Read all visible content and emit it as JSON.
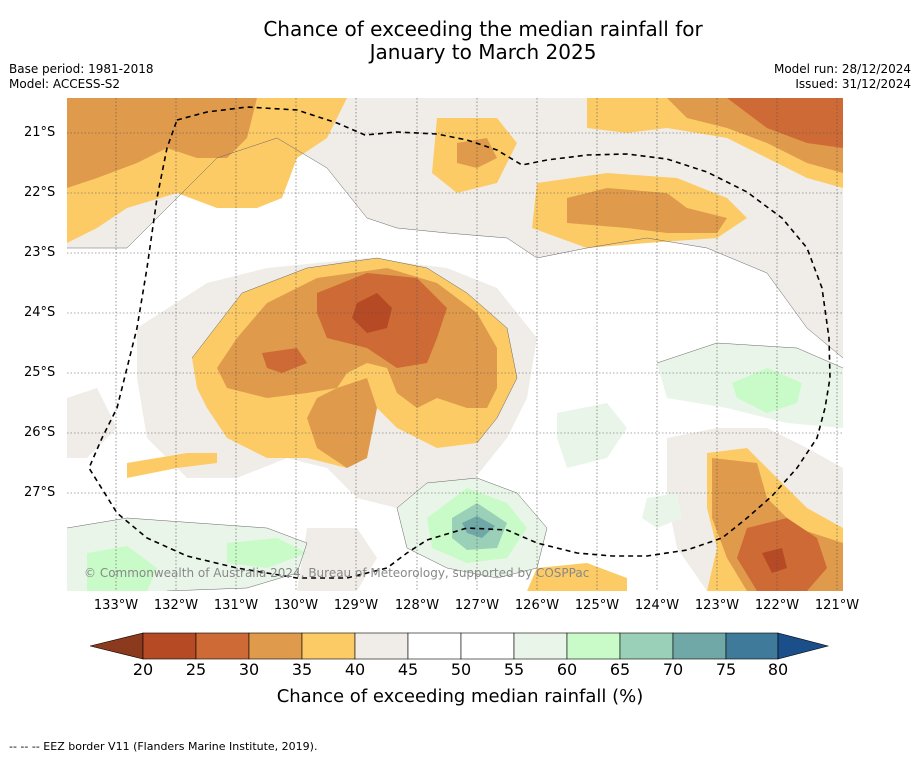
{
  "title_line1": "Chance of exceeding the median rainfall for",
  "title_line2": "January to March 2025",
  "base_period": "Base period: 1981-2018",
  "model": "Model: ACCESS-S2",
  "model_run": "Model run: 28/12/2024",
  "issued": "Issued: 31/12/2024",
  "copyright": "© Commonwealth of Australia 2024, Bureau of Meteorology, supported by COSPPac",
  "footer": "--  --  -- EEZ border V11 (Flanders Marine Institute, 2019).",
  "lat_labels": [
    "21°S",
    "22°S",
    "23°S",
    "24°S",
    "25°S",
    "26°S",
    "27°S"
  ],
  "lon_labels": [
    "133°W",
    "132°W",
    "131°W",
    "130°W",
    "129°W",
    "128°W",
    "127°W",
    "126°W",
    "125°W",
    "124°W",
    "123°W",
    "122°W",
    "121°W"
  ],
  "colorbar": {
    "title": "Chance of exceeding median rainfall (%)",
    "ticks": [
      "20",
      "25",
      "30",
      "35",
      "40",
      "45",
      "50",
      "55",
      "60",
      "65",
      "70",
      "75",
      "80"
    ],
    "colors": [
      "#8c3a1e",
      "#b54a25",
      "#cd6a35",
      "#e09a4b",
      "#fccb66",
      "#f0ede8",
      "#ffffff",
      "#ffffff",
      "#e9f5e8",
      "#c9fbc8",
      "#9bd0b8",
      "#6fa8a6",
      "#3f7a9a",
      "#1a4f8a"
    ]
  },
  "colors": {
    "c20_25": "#b54a25",
    "c25_30": "#cd6a35",
    "c30_35": "#e09a4b",
    "c35_40": "#fccb66",
    "c40_45": "#f0ede8",
    "c55_60": "#e9f5e8",
    "c60_65": "#c9fbc8",
    "c65_70": "#9bd0b8",
    "c70_75": "#6fa8a6"
  }
}
